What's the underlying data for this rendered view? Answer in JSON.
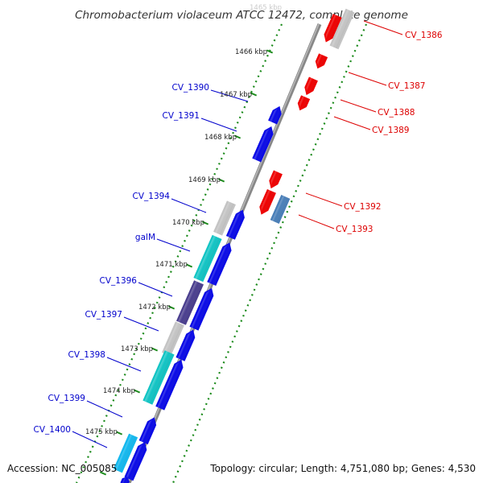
{
  "title": "Chromobacterium violaceum ATCC 12472, complete genome",
  "footer": {
    "accession": "Accession: NC_005085",
    "topology": "Topology: circular; Length: 4,751,080 bp; Genes: 4,530"
  },
  "colors": {
    "forward_gene": "#0a0ae6",
    "reverse_gene": "#ee0000",
    "grey_gene": "#c4c4c4",
    "cyan_gene": "#12c4c4",
    "purple_gene": "#4a3e8e",
    "lightblue_gene": "#14b8ee",
    "steelblue_gene": "#4a7fb8",
    "forward_label": "#0000cc",
    "reverse_label": "#dd0000",
    "tick_marks": "#1a8a1a",
    "backbone": "#888888"
  },
  "kbp_labels": [
    "1466 kbp",
    "1467 kbp",
    "1468 kbp",
    "1469 kbp",
    "1470 kbp",
    "1471 kbp",
    "1472 kbp",
    "1473 kbp",
    "1474 kbp",
    "1475 kbp"
  ],
  "forward_labels": [
    "CV_1390",
    "CV_1391",
    "CV_1394",
    "galM",
    "CV_1396",
    "CV_1397",
    "CV_1398",
    "CV_1399",
    "CV_1400"
  ],
  "reverse_labels": [
    "CV_1386",
    "CV_1387",
    "CV_1388",
    "CV_1389",
    "CV_1392",
    "CV_1393"
  ]
}
